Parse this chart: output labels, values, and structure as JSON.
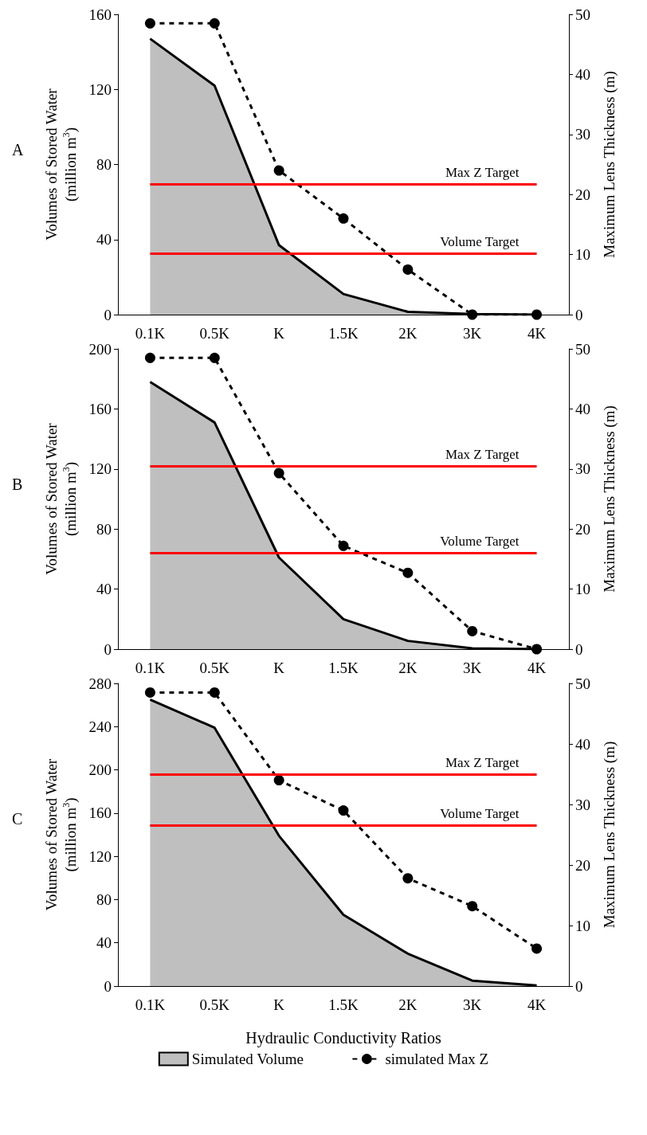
{
  "chart_data": [
    {
      "type": "area",
      "title": "A",
      "categories": [
        "0.1K",
        "0.5K",
        "K",
        "1.5K",
        "2K",
        "3K",
        "4K"
      ],
      "ylabel": "Volumes of Stored Water\n(million m$^{3}$)",
      "y2label": "Maximum Lens Thickness (m)",
      "ylim": [
        0,
        160
      ],
      "yticks": [
        0,
        40,
        80,
        120,
        160
      ],
      "y2lim": [
        0,
        50
      ],
      "y2ticks": [
        0,
        10,
        20,
        30,
        40,
        50
      ],
      "grid": false,
      "legend": false,
      "series": [
        {
          "type": "area",
          "color": "#bfbfbf",
          "values": [
            147,
            122,
            37,
            11,
            1.5,
            0.3,
            0
          ]
        },
        {
          "type": "line",
          "axis": "y2",
          "color": "#000000",
          "line_style": "dashed",
          "marker": "circle",
          "values": [
            48.5,
            48.5,
            24,
            16,
            7.5,
            0,
            0
          ]
        }
      ],
      "ref_lines": [
        {
          "axis": "y2",
          "value": 21.7,
          "label": "Max Z Target",
          "color": "#ff0000"
        },
        {
          "axis": "y",
          "value": 32.5,
          "label": "Volume Target",
          "color": "#ff0000"
        }
      ]
    },
    {
      "type": "area",
      "title": "B",
      "categories": [
        "0.1K",
        "0.5K",
        "K",
        "1.5K",
        "2K",
        "3K",
        "4K"
      ],
      "ylabel": "Volumes of Stored Water\n(million m$^{3}$)",
      "y2label": "Maximum Lens Thickness (m)",
      "ylim": [
        0,
        200
      ],
      "yticks": [
        0,
        40,
        80,
        120,
        160,
        200
      ],
      "y2lim": [
        0,
        50
      ],
      "y2ticks": [
        0,
        10,
        20,
        30,
        40,
        50
      ],
      "grid": false,
      "legend": false,
      "series": [
        {
          "type": "area",
          "color": "#bfbfbf",
          "values": [
            178,
            151,
            61,
            20,
            5.5,
            0.5,
            0
          ]
        },
        {
          "type": "line",
          "axis": "y2",
          "color": "#000000",
          "line_style": "dashed",
          "marker": "circle",
          "values": [
            48.5,
            48.5,
            29.3,
            17.2,
            12.7,
            3,
            0
          ]
        }
      ],
      "ref_lines": [
        {
          "axis": "y2",
          "value": 30.5,
          "label": "Max Z Target",
          "color": "#ff0000"
        },
        {
          "axis": "y",
          "value": 64,
          "label": "Volume Target",
          "color": "#ff0000"
        }
      ]
    },
    {
      "type": "area",
      "title": "C",
      "categories": [
        "0.1K",
        "0.5K",
        "K",
        "1.5K",
        "2K",
        "3K",
        "4K"
      ],
      "xlabel": "Hydraulic Conductivity Ratios",
      "ylabel": "Volumes of Stored Water\n(million m$^{3}$)",
      "y2label": "Maximum Lens Thickness (m)",
      "ylim": [
        0,
        280
      ],
      "yticks": [
        0,
        40,
        80,
        120,
        160,
        200,
        240,
        280
      ],
      "y2lim": [
        0,
        50
      ],
      "y2ticks": [
        0,
        10,
        20,
        30,
        40,
        50
      ],
      "grid": false,
      "legend": "bottom",
      "series": [
        {
          "name": "Simulated Volume",
          "type": "area",
          "color": "#bfbfbf",
          "values": [
            265,
            239,
            139,
            66,
            30,
            5,
            0.5
          ]
        },
        {
          "name": "simulated Max Z",
          "type": "line",
          "axis": "y2",
          "color": "#000000",
          "line_style": "dashed",
          "marker": "circle",
          "values": [
            48.5,
            48.5,
            34,
            29,
            17.8,
            13.2,
            6.2
          ]
        }
      ],
      "ref_lines": [
        {
          "axis": "y2",
          "value": 35,
          "label": "Max Z Target",
          "color": "#ff0000"
        },
        {
          "axis": "y",
          "value": 149,
          "label": "Volume Target",
          "color": "#ff0000"
        }
      ]
    }
  ]
}
